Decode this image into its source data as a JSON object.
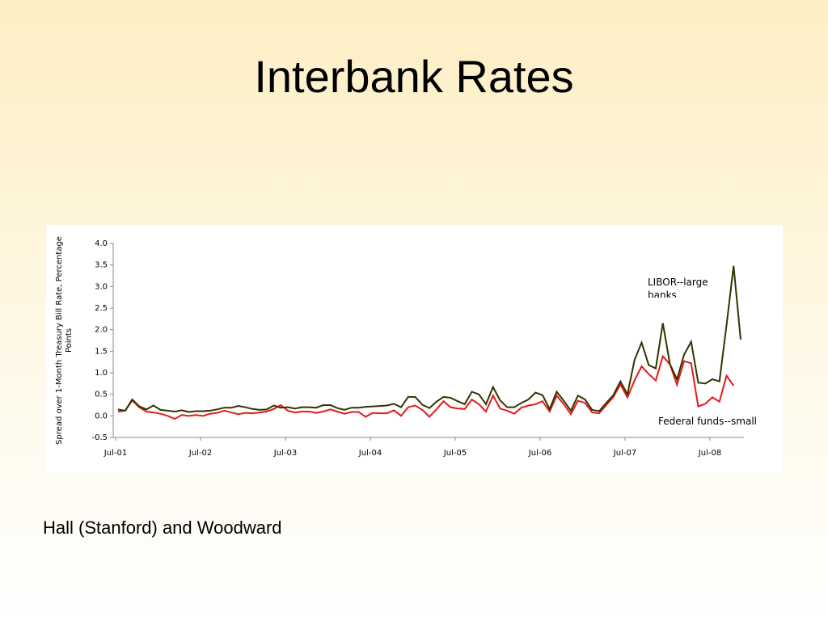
{
  "title": "Interbank Rates",
  "footer": "Hall (Stanford) and Woodward",
  "chart_data": {
    "type": "line",
    "ylabel": "Spread over 1-Month Treasury Bill Rate, Percentage Points",
    "categories": [
      "Jul-01",
      null,
      null,
      null,
      null,
      null,
      null,
      null,
      null,
      null,
      null,
      null,
      "Jul-02",
      null,
      null,
      null,
      null,
      null,
      null,
      null,
      null,
      null,
      null,
      null,
      "Jul-03",
      null,
      null,
      null,
      null,
      null,
      null,
      null,
      null,
      null,
      null,
      null,
      "Jul-04",
      null,
      null,
      null,
      null,
      null,
      null,
      null,
      null,
      null,
      null,
      null,
      "Jul-05",
      null,
      null,
      null,
      null,
      null,
      null,
      null,
      null,
      null,
      null,
      null,
      "Jul-06",
      null,
      null,
      null,
      null,
      null,
      null,
      null,
      null,
      null,
      null,
      null,
      "Jul-07",
      null,
      null,
      null,
      null,
      null,
      null,
      null,
      null,
      null,
      null,
      null,
      "Jul-08",
      null,
      null,
      null,
      null
    ],
    "series": [
      {
        "name": "LIBOR--large banks",
        "color": "#333300",
        "values": [
          0.15,
          0.12,
          0.38,
          0.22,
          0.15,
          0.24,
          0.14,
          0.12,
          0.1,
          0.13,
          0.09,
          0.11,
          0.11,
          0.12,
          0.15,
          0.19,
          0.19,
          0.23,
          0.2,
          0.16,
          0.14,
          0.15,
          0.24,
          0.19,
          0.2,
          0.17,
          0.2,
          0.2,
          0.19,
          0.25,
          0.25,
          0.18,
          0.14,
          0.19,
          0.19,
          0.21,
          0.22,
          0.23,
          0.24,
          0.28,
          0.2,
          0.44,
          0.44,
          0.26,
          0.18,
          0.33,
          0.44,
          0.42,
          0.34,
          0.27,
          0.56,
          0.5,
          0.27,
          0.67,
          0.36,
          0.2,
          0.2,
          0.3,
          0.38,
          0.54,
          0.48,
          0.16,
          0.56,
          0.35,
          0.12,
          0.47,
          0.38,
          0.14,
          0.11,
          0.3,
          0.48,
          0.8,
          0.5,
          1.3,
          1.7,
          1.18,
          1.1,
          2.15,
          1.2,
          0.85,
          1.42,
          1.72,
          0.77,
          0.75,
          0.85,
          0.8,
          2.1,
          3.48,
          1.77
        ]
      },
      {
        "name": "Federal funds--small",
        "color": "#e31a1c",
        "values": [
          0.1,
          0.12,
          0.36,
          0.2,
          0.1,
          0.08,
          0.05,
          0.0,
          -0.07,
          0.02,
          0.0,
          0.02,
          0.0,
          0.05,
          0.07,
          0.12,
          0.08,
          0.04,
          0.07,
          0.06,
          0.08,
          0.1,
          0.16,
          0.25,
          0.12,
          0.08,
          0.1,
          0.1,
          0.07,
          0.1,
          0.15,
          0.1,
          0.05,
          0.09,
          0.09,
          -0.02,
          0.07,
          0.06,
          0.06,
          0.13,
          0.0,
          0.2,
          0.24,
          0.14,
          -0.02,
          0.15,
          0.34,
          0.2,
          0.17,
          0.16,
          0.38,
          0.27,
          0.1,
          0.47,
          0.17,
          0.12,
          0.05,
          0.19,
          0.24,
          0.27,
          0.34,
          0.1,
          0.47,
          0.27,
          0.04,
          0.35,
          0.3,
          0.08,
          0.06,
          0.25,
          0.44,
          0.73,
          0.43,
          0.82,
          1.15,
          0.97,
          0.82,
          1.38,
          1.2,
          0.72,
          1.27,
          1.22,
          0.22,
          0.28,
          0.43,
          0.33,
          0.93,
          0.7,
          null
        ]
      }
    ],
    "ylim": [
      -0.5,
      4.0
    ],
    "yticks": [
      {
        "value": -0.5,
        "label": "-0.5"
      },
      {
        "value": 0,
        "label": "0.0"
      },
      {
        "value": 0.5,
        "label": "0.5"
      },
      {
        "value": 1,
        "label": "1.0"
      },
      {
        "value": 1.5,
        "label": "1.5"
      },
      {
        "value": 2,
        "label": "2.0"
      },
      {
        "value": 2.5,
        "label": "2.5"
      },
      {
        "value": 3,
        "label": "3.0"
      },
      {
        "value": 3.5,
        "label": "3.5"
      },
      {
        "value": 4,
        "label": "4.0"
      }
    ]
  }
}
